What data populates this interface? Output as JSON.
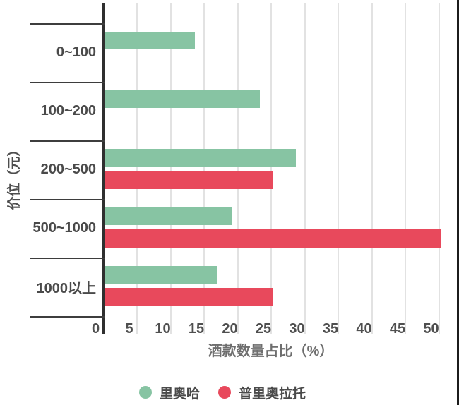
{
  "chart_data": {
    "type": "bar",
    "orientation": "horizontal",
    "title": "",
    "xlabel": "酒款数量占比（%）",
    "ylabel": "价位（元）",
    "categories": [
      "0~100",
      "100~200",
      "200~500",
      "500~1000",
      "1000以上"
    ],
    "series": [
      {
        "name": "里奥哈",
        "color": "#87c4a3",
        "values": [
          13.5,
          23.2,
          28.5,
          19.0,
          16.8
        ]
      },
      {
        "name": "普里奥拉托",
        "color": "#e8495c",
        "values": [
          0,
          0,
          25.1,
          50.2,
          25.2
        ]
      }
    ],
    "xlim": [
      0,
      50
    ],
    "xticks": [
      "0",
      "5",
      "10",
      "15",
      "20",
      "25",
      "30",
      "35",
      "40",
      "45",
      "50"
    ],
    "grid": true,
    "legend_position": "bottom"
  },
  "colors": {
    "series_green": "#87c4a3",
    "series_red": "#e8495c",
    "axis": "#2f2f2f",
    "gridline": "#e2e2e2",
    "text": "#4a4a4a",
    "background": "#ffffff"
  }
}
